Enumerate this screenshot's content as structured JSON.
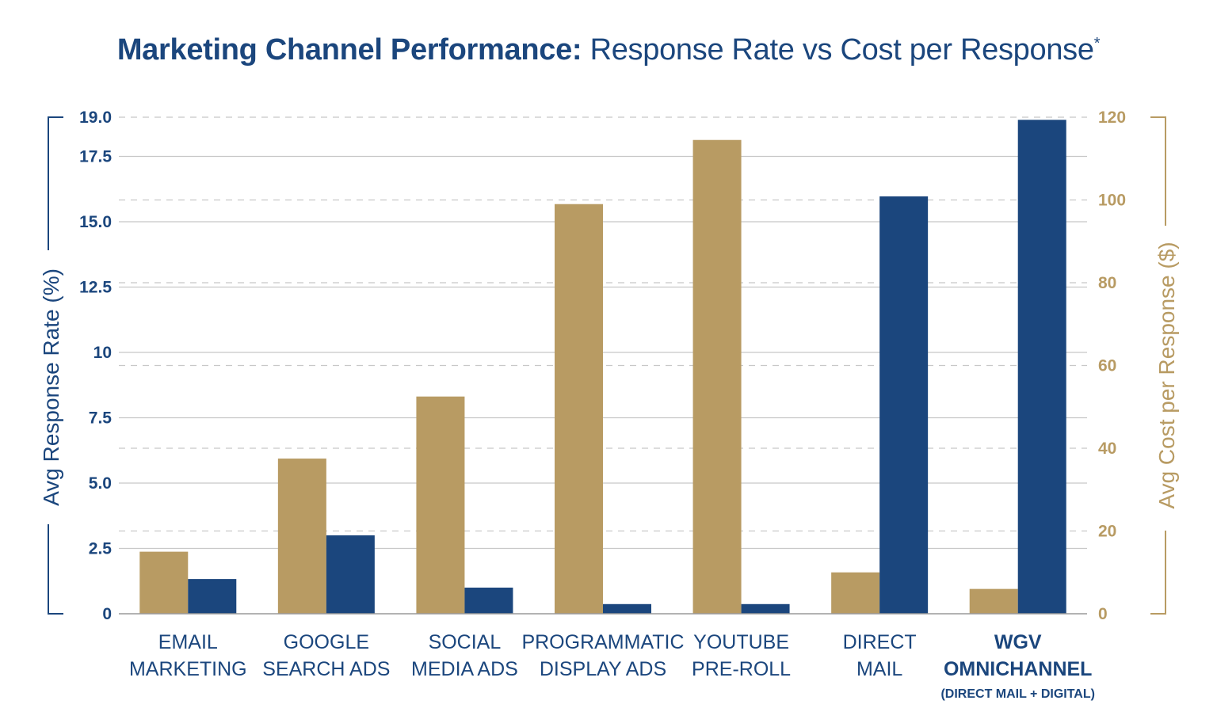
{
  "title": {
    "bold": "Marketing Channel Performance:",
    "regular": "Response Rate vs Cost per Response",
    "mark": "*"
  },
  "colors": {
    "navy": "#1b467d",
    "gold": "#b89b63",
    "grid_solid": "#c8c8c8",
    "grid_dashed": "#c8c8c8"
  },
  "chart_data": {
    "type": "bar",
    "categories": [
      {
        "lines": [
          "EMAIL",
          "MARKETING"
        ],
        "bold": false
      },
      {
        "lines": [
          "GOOGLE",
          "SEARCH ADS"
        ],
        "bold": false
      },
      {
        "lines": [
          "SOCIAL",
          "MEDIA ADS"
        ],
        "bold": false
      },
      {
        "lines": [
          "PROGRAMMATIC",
          "DISPLAY ADS"
        ],
        "bold": false
      },
      {
        "lines": [
          "YOUTUBE",
          "PRE-ROLL"
        ],
        "bold": false
      },
      {
        "lines": [
          "DIRECT",
          "MAIL"
        ],
        "bold": false
      },
      {
        "lines": [
          "WGV",
          "OMNICHANNEL"
        ],
        "sub": "(DIRECT MAIL + DIGITAL)",
        "bold": true
      }
    ],
    "series": [
      {
        "axis": "right",
        "color": "#b89b63",
        "values": [
          15,
          37.5,
          52.5,
          99,
          114.5,
          10,
          6
        ]
      },
      {
        "axis": "left",
        "color": "#1b467d",
        "values": [
          1.33,
          3.0,
          1.0,
          0.37,
          0.37,
          15.97,
          18.9
        ]
      }
    ],
    "left_axis": {
      "label": "Avg Response Rate (%)",
      "ticks": [
        "0",
        "2.5",
        "5.0",
        "7.5",
        "10",
        "12.5",
        "15.0",
        "17.5",
        "19.0"
      ],
      "tick_values": [
        0,
        2.5,
        5,
        7.5,
        10,
        12.5,
        15,
        17.5,
        19
      ],
      "range": [
        0,
        19
      ]
    },
    "right_axis": {
      "label": "Avg Cost per Response ($)",
      "ticks": [
        "0",
        "20",
        "40",
        "60",
        "80",
        "100",
        "120"
      ],
      "tick_values": [
        0,
        20,
        40,
        60,
        80,
        100,
        120
      ],
      "range": [
        0,
        120
      ]
    },
    "grid": true
  }
}
